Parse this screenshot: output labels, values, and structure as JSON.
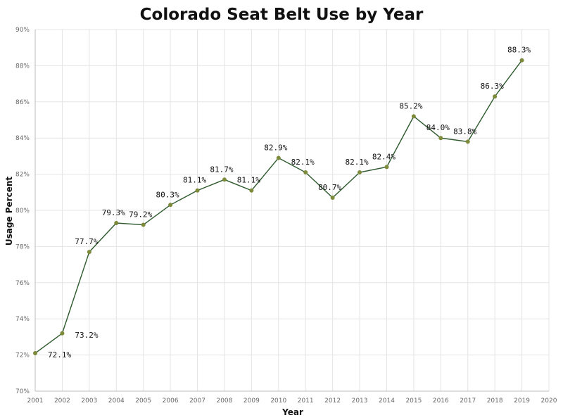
{
  "chart_data": {
    "type": "line",
    "title": "Colorado Seat Belt Use by Year",
    "xlabel": "Year",
    "ylabel": "Usage Percent",
    "x_ticks": [
      "2001",
      "2002",
      "2003",
      "2004",
      "2005",
      "2006",
      "2007",
      "2008",
      "2009",
      "2010",
      "2011",
      "2012",
      "2013",
      "2014",
      "2015",
      "2016",
      "2017",
      "2018",
      "2019",
      "2020"
    ],
    "y_ticks": [
      "70%",
      "72%",
      "74%",
      "76%",
      "78%",
      "80%",
      "82%",
      "84%",
      "86%",
      "88%",
      "90%"
    ],
    "xlim": [
      2001,
      2020
    ],
    "ylim": [
      70,
      90
    ],
    "grid": true,
    "colors": {
      "line": "#2e5a2e",
      "marker": "#7d8a3a",
      "grid": "#e4e4e4",
      "axis": "#bdbdbd"
    },
    "series": [
      {
        "x": [
          2001,
          2002,
          2003,
          2004,
          2005,
          2006,
          2007,
          2008,
          2009,
          2010,
          2011,
          2012,
          2013,
          2014,
          2015,
          2016,
          2017,
          2018,
          2019
        ],
        "values": [
          72.1,
          73.2,
          77.7,
          79.3,
          79.2,
          80.3,
          81.1,
          81.7,
          81.1,
          82.9,
          82.1,
          80.7,
          82.1,
          82.4,
          85.2,
          84.0,
          83.8,
          86.3,
          88.3
        ],
        "labels": [
          "72.1%",
          "73.2%",
          "77.7%",
          "79.3%",
          "79.2%",
          "80.3%",
          "81.1%",
          "81.7%",
          "81.1%",
          "82.9%",
          "82.1%",
          "80.7%",
          "82.1%",
          "82.4%",
          "85.2%",
          "84.0%",
          "83.8%",
          "86.3%",
          "88.3%"
        ]
      }
    ]
  }
}
